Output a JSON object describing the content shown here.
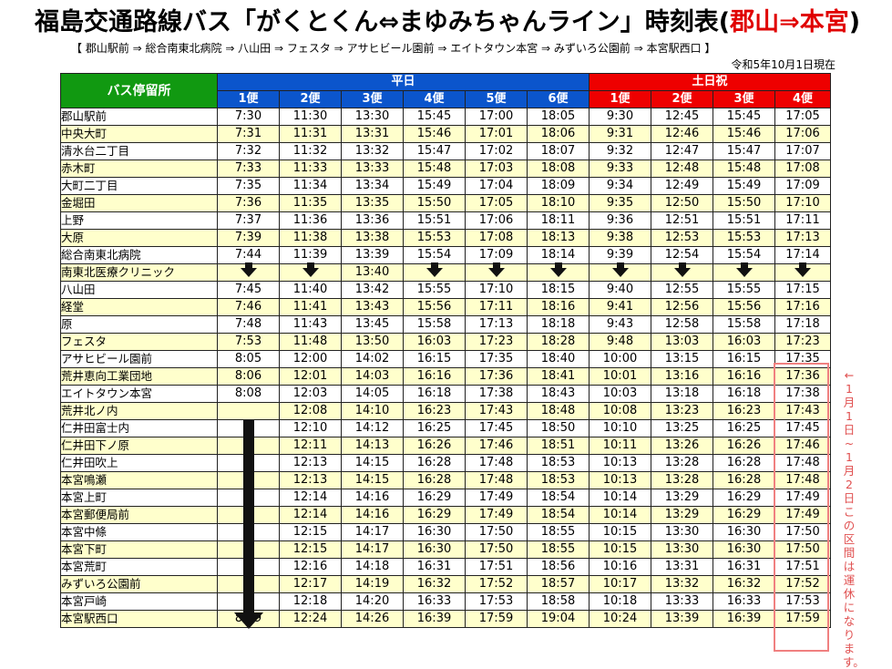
{
  "header": {
    "title_main": "福島交通路線バス「がくとくん⇔まゆみちゃんライン」時刻表(",
    "title_route": "郡山⇒本宮",
    "title_close": ")",
    "route": "【 郡山駅前 ⇒ 総合南東北病院 ⇒ 八山田 ⇒ フェスタ ⇒ アサヒビール園前 ⇒ エイトタウン本宮 ⇒ みずいろ公園前 ⇒ 本宮駅西口 】",
    "as_of": "令和5年10月1日現在"
  },
  "table": {
    "stop_header": "バス停留所",
    "weekday_label": "平日",
    "weekend_label": "土日祝",
    "weekday_bins": [
      "1便",
      "2便",
      "3便",
      "4便",
      "5便",
      "6便"
    ],
    "weekend_bins": [
      "1便",
      "2便",
      "3便",
      "4便"
    ],
    "rows": [
      {
        "stop": "郡山駅前",
        "times": [
          "7:30",
          "11:30",
          "13:30",
          "15:45",
          "17:00",
          "18:05",
          "9:30",
          "12:45",
          "15:45",
          "17:05"
        ]
      },
      {
        "stop": "中央大町",
        "times": [
          "7:31",
          "11:31",
          "13:31",
          "15:46",
          "17:01",
          "18:06",
          "9:31",
          "12:46",
          "15:46",
          "17:06"
        ]
      },
      {
        "stop": "清水台二丁目",
        "times": [
          "7:32",
          "11:32",
          "13:32",
          "15:47",
          "17:02",
          "18:07",
          "9:32",
          "12:47",
          "15:47",
          "17:07"
        ]
      },
      {
        "stop": "赤木町",
        "times": [
          "7:33",
          "11:33",
          "13:33",
          "15:48",
          "17:03",
          "18:08",
          "9:33",
          "12:48",
          "15:48",
          "17:08"
        ]
      },
      {
        "stop": "大町二丁目",
        "times": [
          "7:35",
          "11:34",
          "13:34",
          "15:49",
          "17:04",
          "18:09",
          "9:34",
          "12:49",
          "15:49",
          "17:09"
        ]
      },
      {
        "stop": "金堀田",
        "times": [
          "7:36",
          "11:35",
          "13:35",
          "15:50",
          "17:05",
          "18:10",
          "9:35",
          "12:50",
          "15:50",
          "17:10"
        ]
      },
      {
        "stop": "上野",
        "times": [
          "7:37",
          "11:36",
          "13:36",
          "15:51",
          "17:06",
          "18:11",
          "9:36",
          "12:51",
          "15:51",
          "17:11"
        ]
      },
      {
        "stop": "大原",
        "times": [
          "7:39",
          "11:38",
          "13:38",
          "15:53",
          "17:08",
          "18:13",
          "9:38",
          "12:53",
          "15:53",
          "17:13"
        ]
      },
      {
        "stop": "総合南東北病院",
        "times": [
          "7:44",
          "11:39",
          "13:39",
          "15:54",
          "17:09",
          "18:14",
          "9:39",
          "12:54",
          "15:54",
          "17:14"
        ]
      },
      {
        "stop": "南東北医療クリニック",
        "times": [
          "↓",
          "↓",
          "13:40",
          "↓",
          "↓",
          "↓",
          "↓",
          "↓",
          "↓",
          "↓"
        ]
      },
      {
        "stop": "八山田",
        "times": [
          "7:45",
          "11:40",
          "13:42",
          "15:55",
          "17:10",
          "18:15",
          "9:40",
          "12:55",
          "15:55",
          "17:15"
        ]
      },
      {
        "stop": "経堂",
        "times": [
          "7:46",
          "11:41",
          "13:43",
          "15:56",
          "17:11",
          "18:16",
          "9:41",
          "12:56",
          "15:56",
          "17:16"
        ]
      },
      {
        "stop": "原",
        "times": [
          "7:48",
          "11:43",
          "13:45",
          "15:58",
          "17:13",
          "18:18",
          "9:43",
          "12:58",
          "15:58",
          "17:18"
        ]
      },
      {
        "stop": "フェスタ",
        "times": [
          "7:53",
          "11:48",
          "13:50",
          "16:03",
          "17:23",
          "18:28",
          "9:48",
          "13:03",
          "16:03",
          "17:23"
        ]
      },
      {
        "stop": "アサヒビール園前",
        "times": [
          "8:05",
          "12:00",
          "14:02",
          "16:15",
          "17:35",
          "18:40",
          "10:00",
          "13:15",
          "16:15",
          "17:35"
        ]
      },
      {
        "stop": "荒井恵向工業団地",
        "times": [
          "8:06",
          "12:01",
          "14:03",
          "16:16",
          "17:36",
          "18:41",
          "10:01",
          "13:16",
          "16:16",
          "17:36"
        ]
      },
      {
        "stop": "エイトタウン本宮",
        "times": [
          "8:08",
          "12:03",
          "14:05",
          "16:18",
          "17:38",
          "18:43",
          "10:03",
          "13:18",
          "16:18",
          "17:38"
        ]
      },
      {
        "stop": "荒井北ノ内",
        "times": [
          "",
          "12:08",
          "14:10",
          "16:23",
          "17:43",
          "18:48",
          "10:08",
          "13:23",
          "16:23",
          "17:43"
        ]
      },
      {
        "stop": "仁井田富士内",
        "times": [
          "",
          "12:10",
          "14:12",
          "16:25",
          "17:45",
          "18:50",
          "10:10",
          "13:25",
          "16:25",
          "17:45"
        ]
      },
      {
        "stop": "仁井田下ノ原",
        "times": [
          "",
          "12:11",
          "14:13",
          "16:26",
          "17:46",
          "18:51",
          "10:11",
          "13:26",
          "16:26",
          "17:46"
        ]
      },
      {
        "stop": "仁井田吹上",
        "times": [
          "",
          "12:13",
          "14:15",
          "16:28",
          "17:48",
          "18:53",
          "10:13",
          "13:28",
          "16:28",
          "17:48"
        ]
      },
      {
        "stop": "本宮鳴瀬",
        "times": [
          "",
          "12:13",
          "14:15",
          "16:28",
          "17:48",
          "18:53",
          "10:13",
          "13:28",
          "16:28",
          "17:48"
        ]
      },
      {
        "stop": "本宮上町",
        "times": [
          "",
          "12:14",
          "14:16",
          "16:29",
          "17:49",
          "18:54",
          "10:14",
          "13:29",
          "16:29",
          "17:49"
        ]
      },
      {
        "stop": "本宮郵便局前",
        "times": [
          "",
          "12:14",
          "14:16",
          "16:29",
          "17:49",
          "18:54",
          "10:14",
          "13:29",
          "16:29",
          "17:49"
        ]
      },
      {
        "stop": "本宮中條",
        "times": [
          "",
          "12:15",
          "14:17",
          "16:30",
          "17:50",
          "18:55",
          "10:15",
          "13:30",
          "16:30",
          "17:50"
        ]
      },
      {
        "stop": "本宮下町",
        "times": [
          "",
          "12:15",
          "14:17",
          "16:30",
          "17:50",
          "18:55",
          "10:15",
          "13:30",
          "16:30",
          "17:50"
        ]
      },
      {
        "stop": "本宮荒町",
        "times": [
          "",
          "12:16",
          "14:18",
          "16:31",
          "17:51",
          "18:56",
          "10:16",
          "13:31",
          "16:31",
          "17:51"
        ]
      },
      {
        "stop": "みずいろ公園前",
        "times": [
          "",
          "12:17",
          "14:19",
          "16:32",
          "17:52",
          "18:57",
          "10:17",
          "13:32",
          "16:32",
          "17:52"
        ]
      },
      {
        "stop": "本宮戸崎",
        "times": [
          "",
          "12:18",
          "14:20",
          "16:33",
          "17:53",
          "18:58",
          "10:18",
          "13:33",
          "16:33",
          "17:53"
        ]
      },
      {
        "stop": "本宮駅西口",
        "times": [
          "8:19",
          "12:24",
          "14:26",
          "16:39",
          "17:59",
          "19:04",
          "10:24",
          "13:39",
          "16:39",
          "17:59"
        ]
      }
    ]
  },
  "note": "←1月1日~1月2日この区間は運休になります。",
  "colors": {
    "stop_header": "#119911",
    "weekday": "#0b55cc",
    "weekend": "#ee0000",
    "stripe": "#ffffcc",
    "note": "#e05050"
  }
}
